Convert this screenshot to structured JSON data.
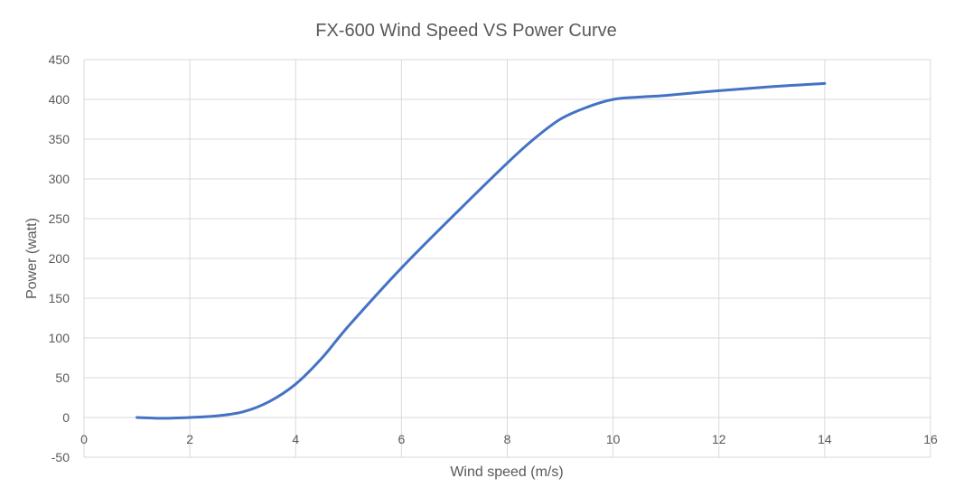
{
  "chart_data": {
    "type": "line",
    "title": "FX-600 Wind Speed VS Power Curve",
    "xlabel": "Wind speed (m/s)",
    "ylabel": "Power (watt)",
    "xlim": [
      0,
      16
    ],
    "ylim": [
      -50,
      450
    ],
    "x_ticks": [
      0,
      2,
      4,
      6,
      8,
      10,
      12,
      14,
      16
    ],
    "y_ticks": [
      -50,
      0,
      50,
      100,
      150,
      200,
      250,
      300,
      350,
      400,
      450
    ],
    "grid": true,
    "legend": "none",
    "series_color": "#4472c4",
    "series": [
      {
        "x": [
          1,
          1.5,
          2,
          2.5,
          3,
          3.5,
          4,
          4.5,
          5,
          6,
          7,
          8,
          8.5,
          9,
          9.5,
          10,
          10.5,
          11,
          12,
          13,
          14
        ],
        "values": [
          0,
          -1,
          0,
          2,
          7,
          20,
          42,
          75,
          115,
          188,
          255,
          320,
          350,
          375,
          390,
          400,
          403,
          405,
          411,
          416,
          420
        ]
      }
    ]
  }
}
